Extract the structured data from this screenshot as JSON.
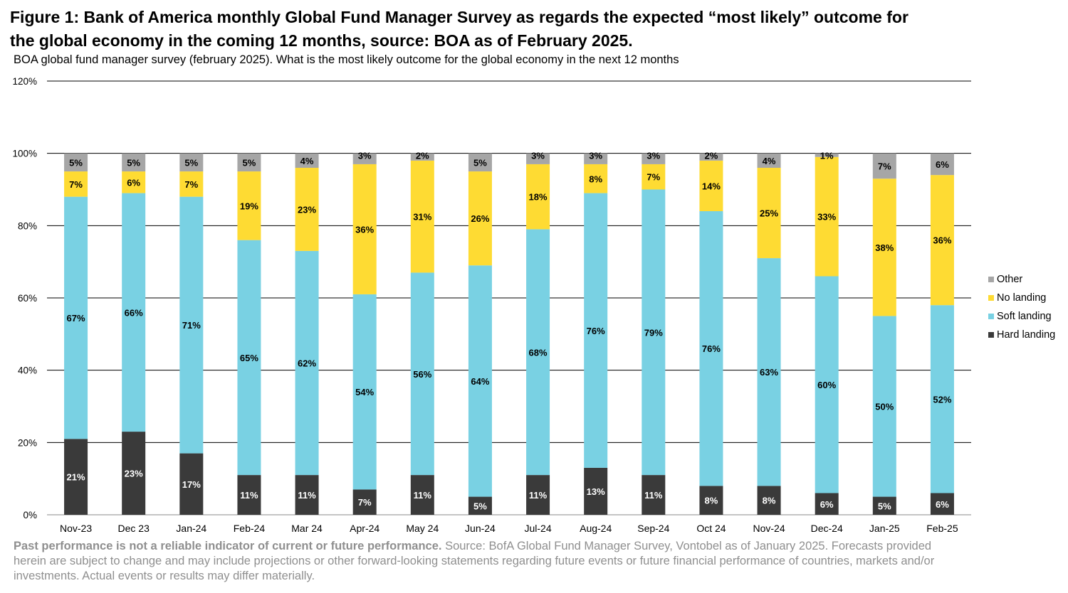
{
  "figure": {
    "title": "Figure 1: Bank of America monthly Global Fund Manager Survey as regards the expected “most likely” outcome for the global economy in the coming 12 months, source: BOA as of February 2025.",
    "subtitle": "BOA global fund manager survey (february 2025). What is the most likely outcome for the global economy in the next 12 months"
  },
  "footnote": {
    "bold": "Past performance is not a reliable indicator of current or future performance.",
    "text": " Source: BofA Global Fund Manager Survey, Vontobel as of January 2025. Forecasts provided herein are subject to change and may include projections or other forward-looking statements regarding future events or future financial performance of countries, markets and/or investments. Actual events or results may differ materially."
  },
  "chart_data": {
    "type": "bar",
    "stacked": true,
    "categories": [
      "Nov-23",
      "Dec 23",
      "Jan-24",
      "Feb-24",
      "Mar 24",
      "Apr-24",
      "May 24",
      "Jun-24",
      "Jul-24",
      "Aug-24",
      "Sep-24",
      "Oct 24",
      "Nov-24",
      "Dec-24",
      "Jan-25",
      "Feb-25"
    ],
    "series": [
      {
        "name": "Hard landing",
        "color": "#3a3a3a",
        "label_color": "#ffffff",
        "values": [
          21,
          23,
          17,
          11,
          11,
          7,
          11,
          5,
          11,
          13,
          11,
          8,
          8,
          6,
          5,
          6
        ]
      },
      {
        "name": "Soft landing",
        "color": "#79d1e3",
        "label_color": "#000000",
        "values": [
          67,
          66,
          71,
          65,
          62,
          54,
          56,
          64,
          68,
          76,
          79,
          76,
          63,
          60,
          50,
          52
        ]
      },
      {
        "name": "No landing",
        "color": "#fedb33",
        "label_color": "#000000",
        "values": [
          7,
          6,
          7,
          19,
          23,
          36,
          31,
          26,
          18,
          8,
          7,
          14,
          25,
          33,
          38,
          36
        ]
      },
      {
        "name": "Other",
        "color": "#a6a6a6",
        "label_color": "#000000",
        "values": [
          5,
          5,
          5,
          5,
          4,
          3,
          2,
          5,
          3,
          3,
          3,
          2,
          4,
          1,
          7,
          6
        ]
      }
    ],
    "legend_order": [
      "Other",
      "No landing",
      "Soft landing",
      "Hard landing"
    ],
    "legend_position": "right",
    "yticks": [
      "0%",
      "20%",
      "40%",
      "60%",
      "80%",
      "100%",
      "120%"
    ],
    "ylim": [
      0,
      120
    ],
    "grid": true,
    "value_suffix": "%"
  }
}
